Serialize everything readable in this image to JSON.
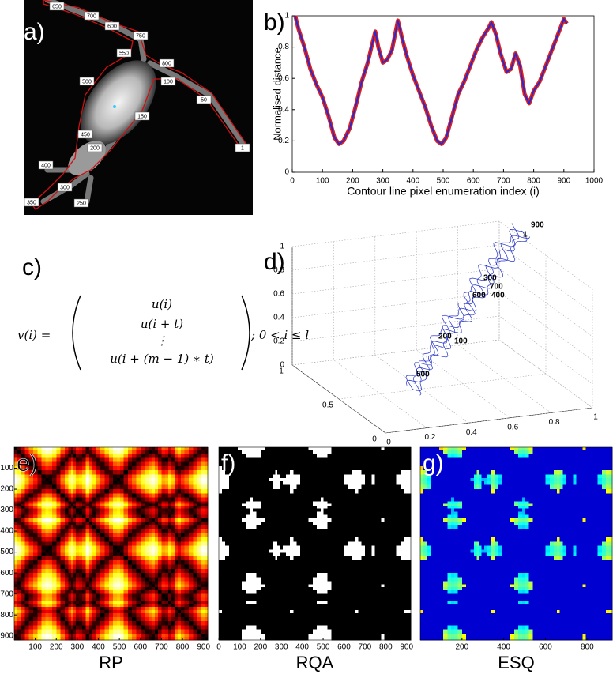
{
  "panel_a": {
    "label": "a)",
    "contour_labels": [
      "650",
      "700",
      "600",
      "750",
      "550",
      "800",
      "500",
      "100",
      "50",
      "150",
      "1",
      "450",
      "200",
      "400",
      "300",
      "350",
      "250"
    ]
  },
  "formula": {
    "label": "c)",
    "lhs": "v(i) =",
    "rows": [
      "u(i)",
      "u(i + t)",
      "⋮",
      "u(i + (m − 1) ∗ t)"
    ],
    "condition": "; 0 < i ≤ l"
  },
  "chart_data": [
    {
      "type": "line",
      "label": "b)",
      "x_label": "Contour line pixel enumeration index (i)",
      "y_label": "Normalised distance",
      "x": [
        10,
        20,
        40,
        60,
        80,
        100,
        120,
        140,
        155,
        170,
        190,
        210,
        230,
        250,
        265,
        275,
        285,
        300,
        315,
        330,
        350,
        365,
        380,
        400,
        420,
        440,
        460,
        480,
        495,
        510,
        530,
        550,
        570,
        590,
        610,
        630,
        650,
        660,
        675,
        690,
        710,
        725,
        740,
        755,
        770,
        785,
        800,
        820,
        840,
        860,
        880,
        900,
        910
      ],
      "values": [
        1.0,
        0.92,
        0.8,
        0.66,
        0.56,
        0.48,
        0.36,
        0.22,
        0.18,
        0.2,
        0.28,
        0.42,
        0.58,
        0.7,
        0.82,
        0.9,
        0.8,
        0.7,
        0.72,
        0.78,
        0.97,
        0.85,
        0.74,
        0.62,
        0.52,
        0.42,
        0.3,
        0.2,
        0.18,
        0.22,
        0.36,
        0.5,
        0.58,
        0.68,
        0.78,
        0.86,
        0.92,
        0.96,
        0.88,
        0.76,
        0.64,
        0.66,
        0.76,
        0.68,
        0.5,
        0.44,
        0.52,
        0.58,
        0.68,
        0.78,
        0.88,
        0.98,
        0.95
      ],
      "color": "#1f2ad8",
      "outline_color": "#e0201c",
      "xlim": [
        0,
        1000
      ],
      "xticks": [
        0,
        100,
        200,
        300,
        400,
        500,
        600,
        700,
        800,
        900,
        1000
      ],
      "ylim": [
        0,
        1
      ],
      "yticks": [
        0,
        0.2,
        0.4,
        0.6,
        0.8,
        1
      ],
      "grid": false
    },
    {
      "type": "heatmap",
      "label": "e)",
      "title": "RP",
      "colormap": "hot",
      "xlim": [
        0,
        920
      ],
      "xticks": [
        100,
        200,
        300,
        400,
        500,
        600,
        700,
        800,
        900
      ],
      "ylim": [
        0,
        920
      ],
      "yticks": [
        100,
        200,
        300,
        400,
        500,
        600,
        700,
        800,
        900
      ]
    },
    {
      "type": "heatmap",
      "label": "f)",
      "title": "RQA",
      "colormap": "binary",
      "xlim": [
        0,
        920
      ],
      "xticks": [
        0,
        100,
        200,
        300,
        400,
        500,
        600,
        700,
        800,
        900
      ],
      "ylim": [
        0,
        920
      ]
    },
    {
      "type": "heatmap",
      "label": "g)",
      "title": "ESQ",
      "colormap": "jet",
      "xlim": [
        0,
        920
      ],
      "xticks": [
        200,
        400,
        600,
        800
      ],
      "ylim": [
        0,
        920
      ]
    },
    {
      "type": "line3d",
      "label": "d)",
      "color": "#2432c8",
      "xlim": [
        0,
        1
      ],
      "xticks": [
        0,
        0.2,
        0.4,
        0.6,
        0.8,
        1
      ],
      "ylim": [
        0,
        1
      ],
      "yticks": [
        0,
        0.5,
        1
      ],
      "zlim": [
        0,
        1
      ],
      "zticks": [
        0,
        0.2,
        0.4,
        0.6,
        0.8,
        1
      ],
      "annotations": [
        "900",
        "1",
        "300",
        "700",
        "600",
        "400",
        "200",
        "100",
        "500"
      ]
    }
  ]
}
